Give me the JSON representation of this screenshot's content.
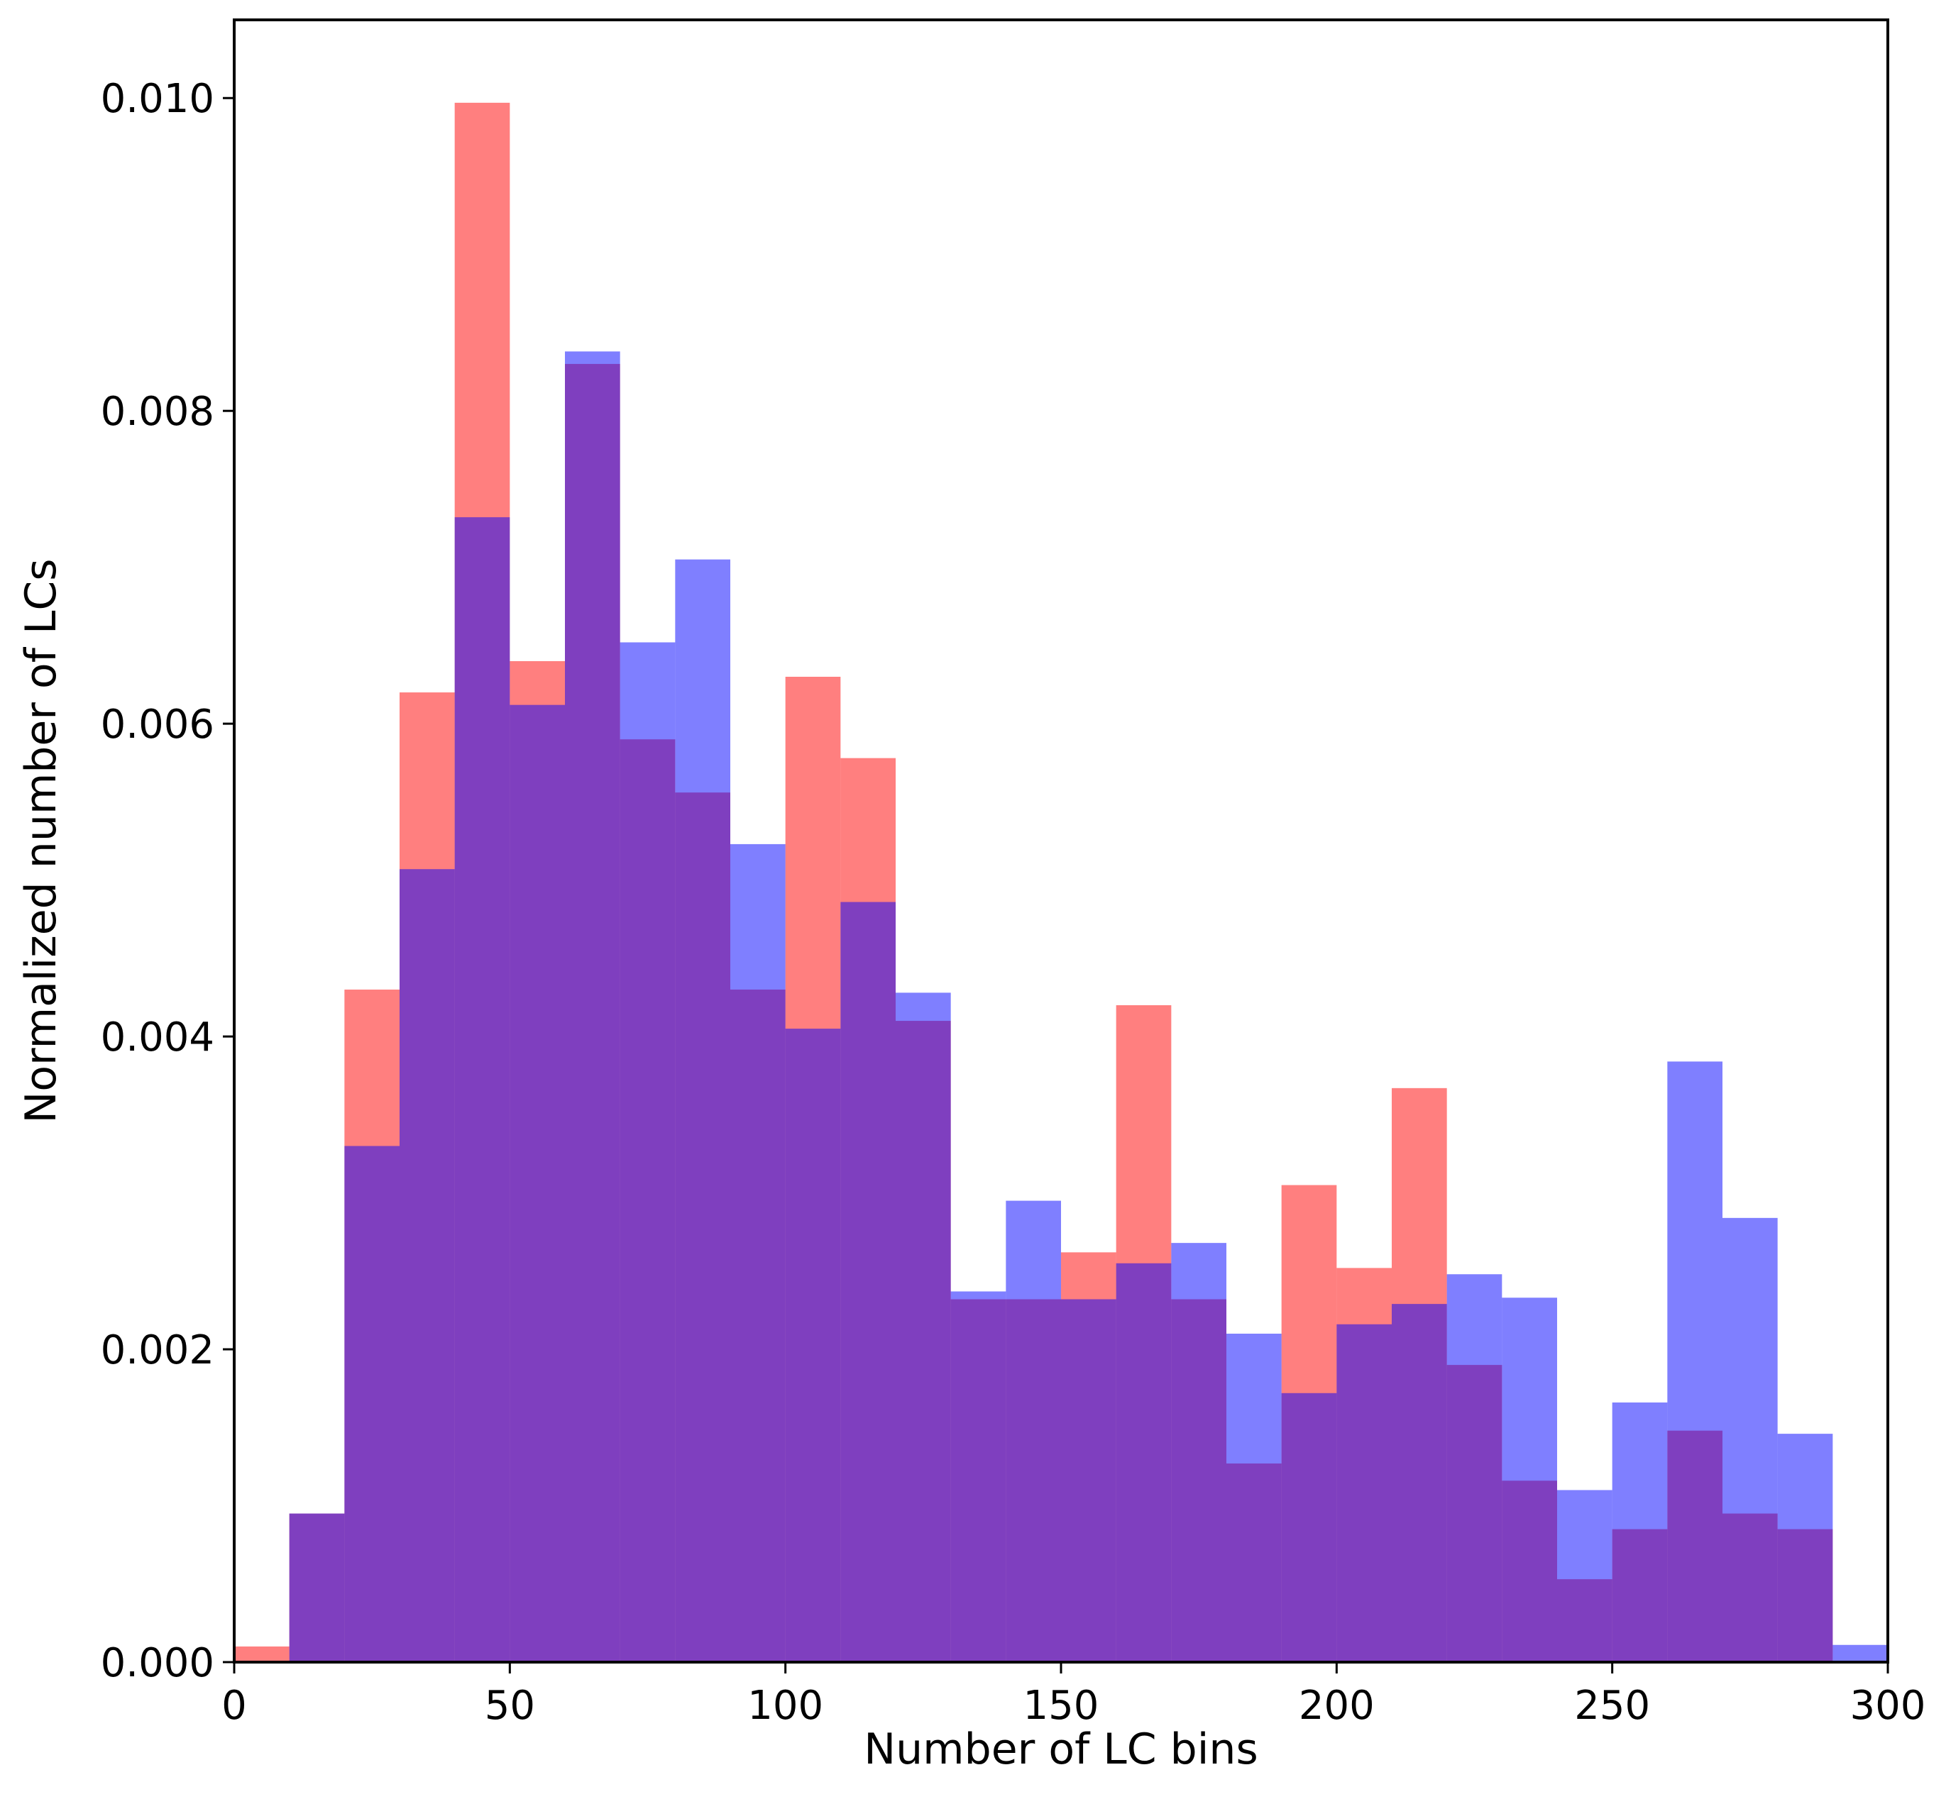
{
  "chart_data": {
    "type": "bar",
    "subtype": "overlapping-histogram",
    "title": "",
    "xlabel": "Number of LC bins",
    "ylabel": "Normalized number of LCs",
    "xlim": [
      0,
      300
    ],
    "ylim": [
      0,
      0.0105
    ],
    "xticks": [
      0,
      50,
      100,
      150,
      200,
      250,
      300
    ],
    "xtick_labels": [
      "0",
      "50",
      "100",
      "150",
      "200",
      "250",
      "300"
    ],
    "yticks": [
      0,
      0.002,
      0.004,
      0.006,
      0.008,
      0.01
    ],
    "ytick_labels": [
      "0.000",
      "0.002",
      "0.004",
      "0.006",
      "0.008",
      "0.010"
    ],
    "grid": false,
    "legend": "none",
    "bin_edges": [
      0,
      10,
      20,
      30,
      40,
      50,
      60,
      70,
      80,
      90,
      100,
      110,
      120,
      130,
      140,
      150,
      160,
      170,
      180,
      190,
      200,
      210,
      220,
      230,
      240,
      250,
      260,
      270,
      280,
      290,
      300
    ],
    "series": [
      {
        "color": "#ff0000",
        "alpha": 0.5,
        "values": [
          0.0001,
          0.00095,
          0.0043,
          0.0062,
          0.00997,
          0.0064,
          0.0083,
          0.0059,
          0.00556,
          0.0043,
          0.0063,
          0.00578,
          0.0041,
          0.00232,
          0.00232,
          0.00262,
          0.0042,
          0.00232,
          0.00127,
          0.00305,
          0.00252,
          0.00367,
          0.0019,
          0.00116,
          0.00053,
          0.00085,
          0.00148,
          0.00095,
          0.00085,
          0.0
        ]
      },
      {
        "color": "#0000ff",
        "alpha": 0.5,
        "values": [
          0.0,
          0.00095,
          0.0033,
          0.00507,
          0.00732,
          0.00612,
          0.00838,
          0.00652,
          0.00705,
          0.00523,
          0.00405,
          0.00486,
          0.00428,
          0.00237,
          0.00295,
          0.00232,
          0.00255,
          0.00268,
          0.0021,
          0.00172,
          0.00216,
          0.00229,
          0.00248,
          0.00233,
          0.0011,
          0.00166,
          0.00384,
          0.00284,
          0.00146,
          0.00011
        ]
      }
    ]
  }
}
